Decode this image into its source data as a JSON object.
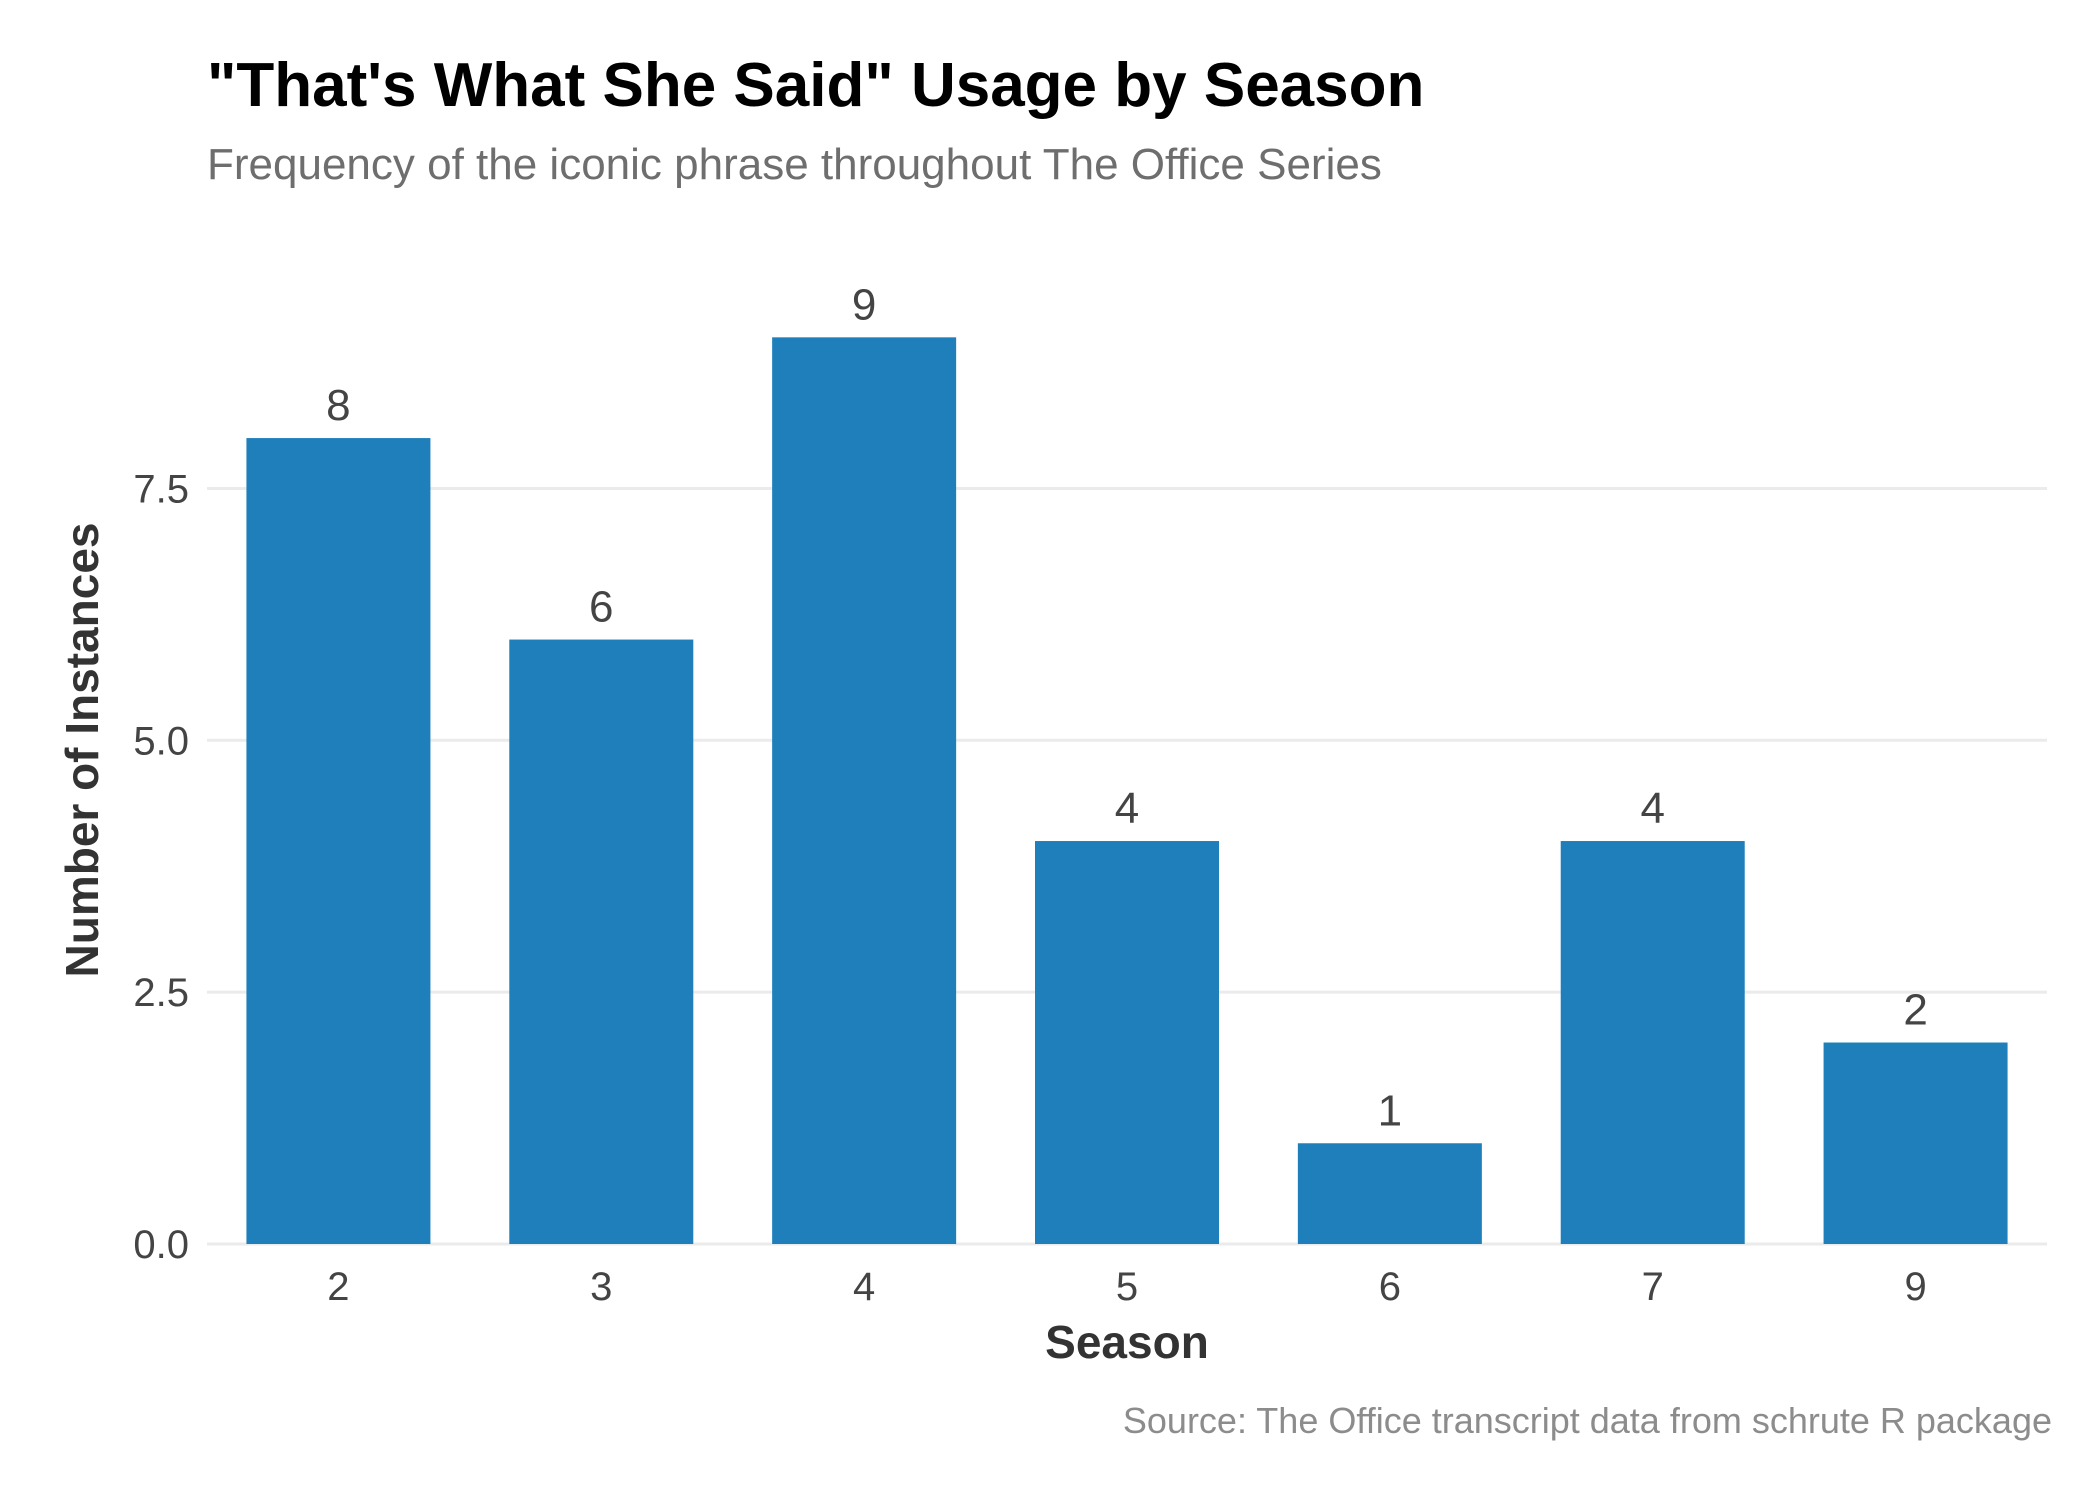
{
  "chart_data": {
    "type": "bar",
    "title": "\"That's What She Said\" Usage by Season",
    "subtitle": "Frequency of the iconic phrase throughout The Office Series",
    "caption": "Source: The Office transcript data from schrute R package",
    "xlabel": "Season",
    "ylabel": "Number of Instances",
    "categories": [
      "2",
      "3",
      "4",
      "5",
      "6",
      "7",
      "9"
    ],
    "values": [
      8,
      6,
      9,
      4,
      1,
      4,
      2
    ],
    "ylim": [
      0,
      9.45
    ],
    "yticks": [
      0,
      2.5,
      5,
      7.5
    ],
    "ytick_labels": [
      "0.0",
      "2.5",
      "5.0",
      "7.5"
    ],
    "bar_color": "#1f7fbb",
    "grid": true,
    "legend": "none"
  }
}
